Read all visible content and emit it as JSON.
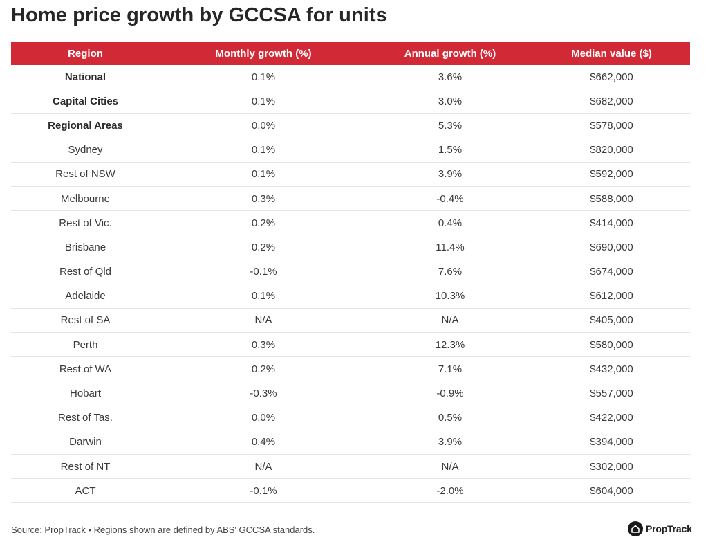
{
  "title": "Home price growth by GCCSA for units",
  "table": {
    "headers": [
      "Region",
      "Monthly growth (%)",
      "Annual growth (%)",
      "Median value ($)"
    ],
    "rows": [
      {
        "region": "National",
        "monthly": "0.1%",
        "annual": "3.6%",
        "median": "$662,000",
        "bold": true
      },
      {
        "region": "Capital Cities",
        "monthly": "0.1%",
        "annual": "3.0%",
        "median": "$682,000",
        "bold": true
      },
      {
        "region": "Regional Areas",
        "monthly": "0.0%",
        "annual": "5.3%",
        "median": "$578,000",
        "bold": true
      },
      {
        "region": "Sydney",
        "monthly": "0.1%",
        "annual": "1.5%",
        "median": "$820,000",
        "bold": false
      },
      {
        "region": "Rest of NSW",
        "monthly": "0.1%",
        "annual": "3.9%",
        "median": "$592,000",
        "bold": false
      },
      {
        "region": "Melbourne",
        "monthly": "0.3%",
        "annual": "-0.4%",
        "median": "$588,000",
        "bold": false
      },
      {
        "region": "Rest of Vic.",
        "monthly": "0.2%",
        "annual": "0.4%",
        "median": "$414,000",
        "bold": false
      },
      {
        "region": "Brisbane",
        "monthly": "0.2%",
        "annual": "11.4%",
        "median": "$690,000",
        "bold": false
      },
      {
        "region": "Rest of Qld",
        "monthly": "-0.1%",
        "annual": "7.6%",
        "median": "$674,000",
        "bold": false
      },
      {
        "region": "Adelaide",
        "monthly": "0.1%",
        "annual": "10.3%",
        "median": "$612,000",
        "bold": false
      },
      {
        "region": "Rest of SA",
        "monthly": "N/A",
        "annual": "N/A",
        "median": "$405,000",
        "bold": false
      },
      {
        "region": "Perth",
        "monthly": "0.3%",
        "annual": "12.3%",
        "median": "$580,000",
        "bold": false
      },
      {
        "region": "Rest of WA",
        "monthly": "0.2%",
        "annual": "7.1%",
        "median": "$432,000",
        "bold": false
      },
      {
        "region": "Hobart",
        "monthly": "-0.3%",
        "annual": "-0.9%",
        "median": "$557,000",
        "bold": false
      },
      {
        "region": "Rest of Tas.",
        "monthly": "0.0%",
        "annual": "0.5%",
        "median": "$422,000",
        "bold": false
      },
      {
        "region": "Darwin",
        "monthly": "0.4%",
        "annual": "3.9%",
        "median": "$394,000",
        "bold": false
      },
      {
        "region": "Rest of NT",
        "monthly": "N/A",
        "annual": "N/A",
        "median": "$302,000",
        "bold": false
      },
      {
        "region": "ACT",
        "monthly": "-0.1%",
        "annual": "-2.0%",
        "median": "$604,000",
        "bold": false
      }
    ]
  },
  "footer": {
    "source": "Source: PropTrack • Regions shown are defined by ABS' GCCSA standards.",
    "logo_text": "PropTrack",
    "logo_icon": "house-icon"
  },
  "colors": {
    "header_bg": "#d12a36",
    "header_text": "#ffffff",
    "row_divider": "#e4e4e4"
  },
  "chart_data": {
    "type": "table",
    "title": "Home price growth by GCCSA for units",
    "columns": [
      "Region",
      "Monthly growth (%)",
      "Annual growth (%)",
      "Median value ($)"
    ],
    "rows": [
      [
        "National",
        0.1,
        3.6,
        662000
      ],
      [
        "Capital Cities",
        0.1,
        3.0,
        682000
      ],
      [
        "Regional Areas",
        0.0,
        5.3,
        578000
      ],
      [
        "Sydney",
        0.1,
        1.5,
        820000
      ],
      [
        "Rest of NSW",
        0.1,
        3.9,
        592000
      ],
      [
        "Melbourne",
        0.3,
        -0.4,
        588000
      ],
      [
        "Rest of Vic.",
        0.2,
        0.4,
        414000
      ],
      [
        "Brisbane",
        0.2,
        11.4,
        690000
      ],
      [
        "Rest of Qld",
        -0.1,
        7.6,
        674000
      ],
      [
        "Adelaide",
        0.1,
        10.3,
        612000
      ],
      [
        "Rest of SA",
        null,
        null,
        405000
      ],
      [
        "Perth",
        0.3,
        12.3,
        580000
      ],
      [
        "Rest of WA",
        0.2,
        7.1,
        432000
      ],
      [
        "Hobart",
        -0.3,
        -0.9,
        557000
      ],
      [
        "Rest of Tas.",
        0.0,
        0.5,
        422000
      ],
      [
        "Darwin",
        0.4,
        3.9,
        394000
      ],
      [
        "Rest of NT",
        null,
        null,
        302000
      ],
      [
        "ACT",
        -0.1,
        -2.0,
        604000
      ]
    ],
    "source": "PropTrack"
  }
}
